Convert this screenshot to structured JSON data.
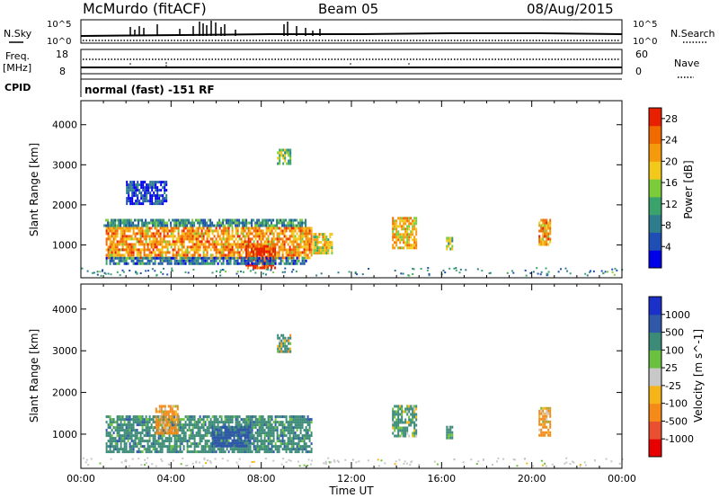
{
  "header": {
    "station": "McMurdo (fitACF)",
    "beam": "Beam 05",
    "date": "08/Aug/2015"
  },
  "top_panel": {
    "left_label": "N.Sky",
    "left_ticks": [
      "10^5",
      "10^0"
    ],
    "right_ticks": [
      "10^5",
      "10^0"
    ],
    "right_label": "N.Search",
    "freq_label_1": "Freq.",
    "freq_label_2": "[MHz]",
    "freq_ticks": [
      "18",
      "8"
    ],
    "nave_ticks": [
      "60",
      "0"
    ],
    "nave_label": "Nave",
    "cpid_label": "CPID",
    "cpid_value": "normal (fast) -151 RF"
  },
  "colors": {
    "power_scale": [
      "#0000e8",
      "#1f4fb4",
      "#2e7d8c",
      "#3aa36b",
      "#7ccb3a",
      "#f2c91a",
      "#f59a0a",
      "#f06a00",
      "#e82000"
    ],
    "velocity_scale": [
      "#1a30c8",
      "#2f58a8",
      "#3c8a78",
      "#6cc040",
      "#c8c8c8",
      "#f5b518",
      "#f58a18",
      "#e85030",
      "#e80000"
    ]
  },
  "chart_data": [
    {
      "type": "heatmap",
      "quantity": "power",
      "ylabel": "Slant Range [km]",
      "yticks": [
        "1000",
        "2000",
        "3000",
        "4000"
      ],
      "ylim": [
        180,
        4600
      ],
      "xlim": [
        0,
        24
      ],
      "colorbar_label": "Power [dB]",
      "colorbar_ticks": [
        "4",
        "8",
        "12",
        "16",
        "20",
        "24",
        "28"
      ],
      "colorbar_range": [
        0,
        30
      ],
      "regions": [
        {
          "t0": 1.1,
          "t1": 10.2,
          "r0": 700,
          "r1": 1450,
          "value": 22
        },
        {
          "t0": 7.3,
          "t1": 8.6,
          "r0": 450,
          "r1": 1000,
          "value": 28
        },
        {
          "t0": 1.0,
          "t1": 10.0,
          "r0": 1450,
          "r1": 1650,
          "value": 10
        },
        {
          "t0": 1.1,
          "t1": 10.0,
          "r0": 550,
          "r1": 700,
          "value": 8
        },
        {
          "t0": 2.0,
          "t1": 3.8,
          "r0": 2000,
          "r1": 2600,
          "value": 4
        },
        {
          "t0": 8.7,
          "t1": 9.3,
          "r0": 3000,
          "r1": 3400,
          "value": 14
        },
        {
          "t0": 10.3,
          "t1": 11.1,
          "r0": 800,
          "r1": 1300,
          "value": 18
        },
        {
          "t0": 13.8,
          "t1": 14.9,
          "r0": 950,
          "r1": 1700,
          "value": 20
        },
        {
          "t0": 16.2,
          "t1": 16.5,
          "r0": 900,
          "r1": 1200,
          "value": 14
        },
        {
          "t0": 20.3,
          "t1": 20.8,
          "r0": 1000,
          "r1": 1650,
          "value": 22
        }
      ]
    },
    {
      "type": "heatmap",
      "quantity": "velocity",
      "ylabel": "Slant Range [km]",
      "yticks": [
        "1000",
        "2000",
        "3000",
        "4000"
      ],
      "ylim": [
        180,
        4600
      ],
      "xlim": [
        0,
        24
      ],
      "xlabel": "Time UT",
      "xticks": [
        "00:00",
        "04:00",
        "08:00",
        "12:00",
        "16:00",
        "20:00",
        "00:00"
      ],
      "colorbar_label": "Velocity [m s^-1]",
      "colorbar_ticks": [
        "1000",
        "500",
        "100",
        "25",
        "-25",
        "-100",
        "-500",
        "-1000"
      ],
      "regions": [
        {
          "t0": 1.1,
          "t1": 10.2,
          "r0": 600,
          "r1": 1450,
          "value": 300
        },
        {
          "t0": 3.3,
          "t1": 4.3,
          "r0": 1000,
          "r1": 1700,
          "value": -200
        },
        {
          "t0": 5.8,
          "t1": 7.5,
          "r0": 700,
          "r1": 1200,
          "value": 700
        },
        {
          "t0": 8.7,
          "t1": 9.3,
          "r0": 3000,
          "r1": 3400,
          "value": 100
        },
        {
          "t0": 13.8,
          "t1": 14.9,
          "r0": 950,
          "r1": 1700,
          "value": 200
        },
        {
          "t0": 16.2,
          "t1": 16.5,
          "r0": 900,
          "r1": 1200,
          "value": 200
        },
        {
          "t0": 20.3,
          "t1": 20.8,
          "r0": 1000,
          "r1": 1650,
          "value": -200
        }
      ]
    }
  ]
}
